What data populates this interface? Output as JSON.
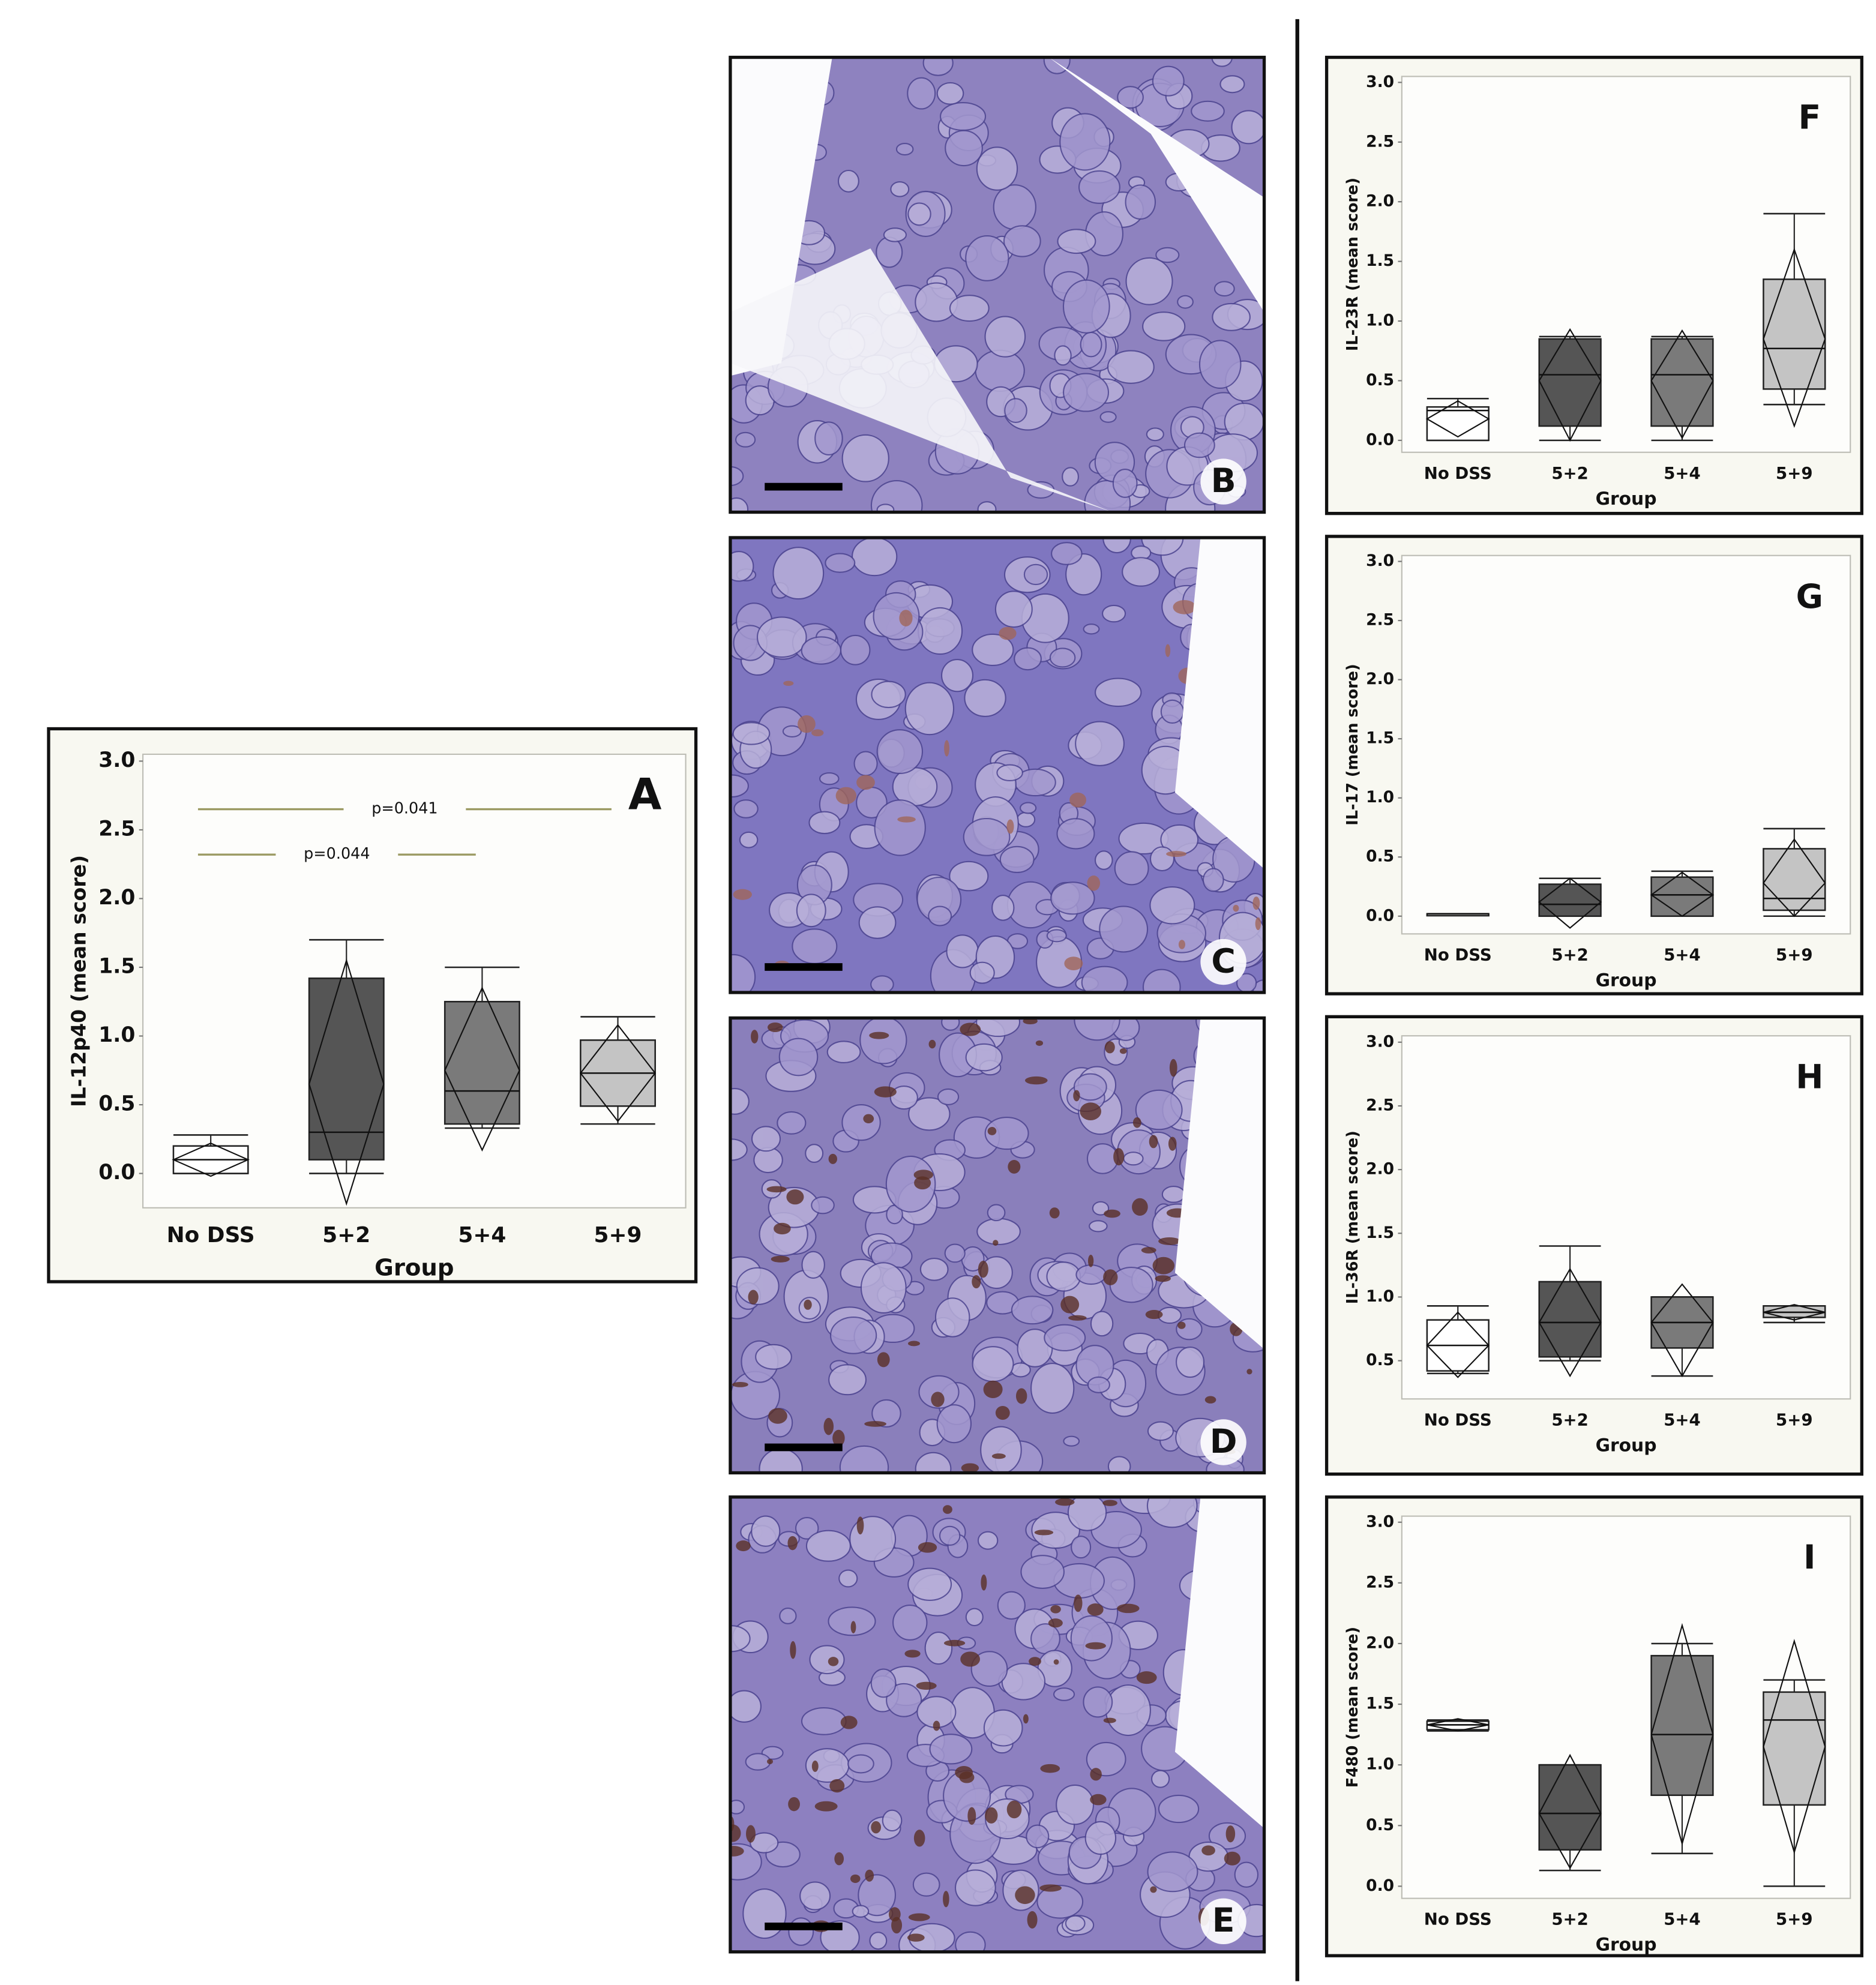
{
  "chart_data": [
    {
      "type": "box",
      "panel": "A",
      "y_label": "IL-12p40 (mean score)",
      "x_label": "Group",
      "categories": [
        "No DSS",
        "5+2",
        "5+4",
        "5+9"
      ],
      "colors": [
        "#ffffff",
        "#555555",
        "#7a7a7a",
        "#c4c4c4"
      ],
      "ylim": [
        -0.25,
        3.05
      ],
      "yticks": [
        {
          "value": 0,
          "label": "0.0"
        },
        0.5,
        {
          "value": 1,
          "label": "1.0"
        },
        1.5,
        {
          "value": 2,
          "label": "2.0"
        },
        2.5,
        {
          "value": 3,
          "label": "3.0"
        }
      ],
      "boxes": [
        {
          "min": 0,
          "q1": 0,
          "median": 0.1,
          "q3": 0.2,
          "max": 0.28,
          "mean_low": -0.02,
          "mean": 0.1,
          "mean_high": 0.22
        },
        {
          "min": 0,
          "q1": 0.1,
          "median": 0.3,
          "q3": 1.42,
          "max": 1.7,
          "mean_low": -0.22,
          "mean": 0.65,
          "mean_high": 1.55
        },
        {
          "min": 0.33,
          "q1": 0.36,
          "median": 0.6,
          "q3": 1.25,
          "max": 1.5,
          "mean_low": 0.17,
          "mean": 0.75,
          "mean_high": 1.35
        },
        {
          "min": 0.36,
          "q1": 0.49,
          "median": 0.73,
          "q3": 0.97,
          "max": 1.14,
          "mean_low": 0.38,
          "mean": 0.73,
          "mean_high": 1.08
        }
      ],
      "annotations": [
        {
          "text": "p=0.041",
          "y": 2.65,
          "from": "No DSS",
          "to": "5+9"
        },
        {
          "text": "p=0.044",
          "y": 2.32,
          "from": "No DSS",
          "to": "5+4"
        }
      ]
    },
    {
      "type": "box",
      "panel": "F",
      "y_label": "IL-23R (mean score)",
      "x_label": "Group",
      "categories": [
        "No DSS",
        "5+2",
        "5+4",
        "5+9"
      ],
      "colors": [
        "#ffffff",
        "#555555",
        "#7a7a7a",
        "#c4c4c4"
      ],
      "ylim": [
        -0.1,
        3.05
      ],
      "yticks": [
        {
          "value": 0,
          "label": "0.0"
        },
        0.5,
        {
          "value": 1,
          "label": "1.0"
        },
        1.5,
        {
          "value": 2,
          "label": "2.0"
        },
        2.5,
        {
          "value": 3,
          "label": "3.0"
        }
      ],
      "boxes": [
        {
          "min": 0,
          "q1": 0,
          "median": 0.25,
          "q3": 0.28,
          "max": 0.35,
          "mean_low": 0.03,
          "mean": 0.18,
          "mean_high": 0.33
        },
        {
          "min": 0,
          "q1": 0.12,
          "median": 0.55,
          "q3": 0.85,
          "max": 0.87,
          "mean_low": 0,
          "mean": 0.5,
          "mean_high": 0.93
        },
        {
          "min": 0,
          "q1": 0.12,
          "median": 0.55,
          "q3": 0.85,
          "max": 0.87,
          "mean_low": 0.02,
          "mean": 0.5,
          "mean_high": 0.92
        },
        {
          "min": 0.3,
          "q1": 0.43,
          "median": 0.77,
          "q3": 1.35,
          "max": 1.9,
          "mean_low": 0.12,
          "mean": 0.85,
          "mean_high": 1.6
        }
      ]
    },
    {
      "type": "box",
      "panel": "G",
      "y_label": "IL-17 (mean score)",
      "x_label": "Group",
      "categories": [
        "No DSS",
        "5+2",
        "5+4",
        "5+9"
      ],
      "colors": [
        "#ffffff",
        "#555555",
        "#7a7a7a",
        "#c4c4c4"
      ],
      "ylim": [
        -0.15,
        3.05
      ],
      "yticks": [
        {
          "value": 0,
          "label": "0.0"
        },
        0.5,
        {
          "value": 1,
          "label": "1.0"
        },
        1.5,
        {
          "value": 2,
          "label": "2.0"
        },
        2.5,
        {
          "value": 3,
          "label": "3.0"
        }
      ],
      "boxes": [
        {
          "min": 0.02,
          "q1": 0.02,
          "median": 0.02,
          "q3": 0.02,
          "max": 0.02,
          "mean_low": 0.02,
          "mean": 0.02,
          "mean_high": 0.02
        },
        {
          "min": 0,
          "q1": 0,
          "median": 0.1,
          "q3": 0.27,
          "max": 0.32,
          "mean_low": -0.1,
          "mean": 0.12,
          "mean_high": 0.32
        },
        {
          "min": 0,
          "q1": 0,
          "median": 0.18,
          "q3": 0.33,
          "max": 0.38,
          "mean_low": 0,
          "mean": 0.18,
          "mean_high": 0.37
        },
        {
          "min": 0,
          "q1": 0.05,
          "median": 0.15,
          "q3": 0.57,
          "max": 0.74,
          "mean_low": 0,
          "mean": 0.28,
          "mean_high": 0.65
        }
      ]
    },
    {
      "type": "box",
      "panel": "H",
      "y_label": "IL-36R (mean score)",
      "x_label": "Group",
      "categories": [
        "No DSS",
        "5+2",
        "5+4",
        "5+9"
      ],
      "colors": [
        "#ffffff",
        "#555555",
        "#7a7a7a",
        "#c4c4c4"
      ],
      "ylim": [
        0.2,
        3.05
      ],
      "yticks": [
        0.5,
        {
          "value": 1,
          "label": "1.0"
        },
        1.5,
        {
          "value": 2,
          "label": "2.0"
        },
        2.5,
        {
          "value": 3,
          "label": "3.0"
        }
      ],
      "boxes": [
        {
          "min": 0.4,
          "q1": 0.42,
          "median": 0.62,
          "q3": 0.82,
          "max": 0.93,
          "mean_low": 0.37,
          "mean": 0.62,
          "mean_high": 0.88
        },
        {
          "min": 0.5,
          "q1": 0.53,
          "median": 0.8,
          "q3": 1.12,
          "max": 1.4,
          "mean_low": 0.38,
          "mean": 0.8,
          "mean_high": 1.22
        },
        {
          "min": 0.38,
          "q1": 0.6,
          "median": 0.8,
          "q3": 1.0,
          "max": 1.0,
          "mean_low": 0.38,
          "mean": 0.8,
          "mean_high": 1.1
        },
        {
          "min": 0.8,
          "q1": 0.84,
          "median": 0.88,
          "q3": 0.93,
          "max": 0.93,
          "mean_low": 0.82,
          "mean": 0.88,
          "mean_high": 0.94
        }
      ]
    },
    {
      "type": "box",
      "panel": "I",
      "y_label": "F480 (mean score)",
      "x_label": "Group",
      "categories": [
        "No DSS",
        "5+2",
        "5+4",
        "5+9"
      ],
      "colors": [
        "#ffffff",
        "#555555",
        "#7a7a7a",
        "#c4c4c4"
      ],
      "ylim": [
        -0.1,
        3.05
      ],
      "yticks": [
        {
          "value": 0,
          "label": "0.0"
        },
        0.5,
        {
          "value": 1,
          "label": "1.0"
        },
        1.5,
        {
          "value": 2,
          "label": "2.0"
        },
        2.5,
        {
          "value": 3,
          "label": "3.0"
        }
      ],
      "boxes": [
        {
          "min": 1.28,
          "q1": 1.29,
          "median": 1.33,
          "q3": 1.36,
          "max": 1.37,
          "mean_low": 1.28,
          "mean": 1.33,
          "mean_high": 1.38
        },
        {
          "min": 0.13,
          "q1": 0.3,
          "median": 0.6,
          "q3": 1.0,
          "max": 1.0,
          "mean_low": 0.15,
          "mean": 0.6,
          "mean_high": 1.08
        },
        {
          "min": 0.27,
          "q1": 0.75,
          "median": 1.25,
          "q3": 1.9,
          "max": 2.0,
          "mean_low": 0.35,
          "mean": 1.25,
          "mean_high": 2.15
        },
        {
          "min": 0,
          "q1": 0.67,
          "median": 1.37,
          "q3": 1.6,
          "max": 1.7,
          "mean_low": 0.28,
          "mean": 1.15,
          "mean_high": 2.02
        }
      ]
    }
  ],
  "images": [
    {
      "label": "B"
    },
    {
      "label": "C"
    },
    {
      "label": "D"
    },
    {
      "label": "E"
    }
  ]
}
